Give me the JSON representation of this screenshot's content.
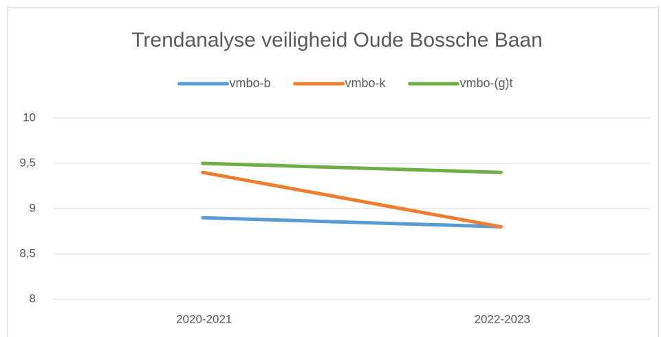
{
  "chart_data": {
    "type": "line",
    "title": "Trendanalyse veiligheid Oude Bossche Baan",
    "categories": [
      "2020-2021",
      "2022-2023"
    ],
    "series": [
      {
        "name": "vmbo-b",
        "color": "#5b9bd5",
        "values": [
          8.9,
          8.8
        ]
      },
      {
        "name": "vmbo-k",
        "color": "#ed7d31",
        "values": [
          9.4,
          8.8
        ]
      },
      {
        "name": "vmbo-(g)t",
        "color": "#70ad47",
        "values": [
          9.5,
          9.4
        ]
      }
    ],
    "ylim": [
      8,
      10
    ],
    "yticks": [
      8,
      {
        "value": 8.5,
        "label": "8,5"
      },
      9,
      {
        "value": 9.5,
        "label": "9,5"
      },
      10
    ],
    "grid": true,
    "legend": "top"
  }
}
